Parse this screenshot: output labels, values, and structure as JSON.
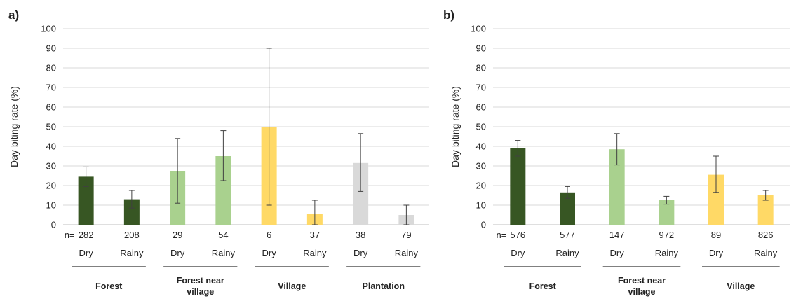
{
  "chart_data": [
    {
      "type": "bar",
      "panel": "a)",
      "ylabel": "Day biting rate (%)",
      "ylim": [
        0,
        100
      ],
      "yticks": [
        0,
        10,
        20,
        30,
        40,
        50,
        60,
        70,
        80,
        90,
        100
      ],
      "grid": true,
      "n_prefix": "n=",
      "bars": [
        {
          "group": "Forest",
          "season": "Dry",
          "n": "282",
          "value": 24.5,
          "err_low": 19.5,
          "err_high": 29.5,
          "color": "#375623"
        },
        {
          "group": "Forest",
          "season": "Rainy",
          "n": "208",
          "value": 13.0,
          "err_low": 8.5,
          "err_high": 17.5,
          "color": "#375623"
        },
        {
          "group": "Forest near village",
          "season": "Dry",
          "n": "29",
          "value": 27.5,
          "err_low": 11.0,
          "err_high": 44.0,
          "color": "#a9d18e"
        },
        {
          "group": "Forest near village",
          "season": "Rainy",
          "n": "54",
          "value": 35.0,
          "err_low": 22.5,
          "err_high": 48.0,
          "color": "#a9d18e"
        },
        {
          "group": "Village",
          "season": "Dry",
          "n": "6",
          "value": 50.0,
          "err_low": 10.0,
          "err_high": 90.0,
          "color": "#ffd966"
        },
        {
          "group": "Village",
          "season": "Rainy",
          "n": "37",
          "value": 5.5,
          "err_low": 0.0,
          "err_high": 12.5,
          "color": "#ffd966"
        },
        {
          "group": "Plantation",
          "season": "Dry",
          "n": "38",
          "value": 31.5,
          "err_low": 17.0,
          "err_high": 46.5,
          "color": "#d9d9d9"
        },
        {
          "group": "Plantation",
          "season": "Rainy",
          "n": "79",
          "value": 5.0,
          "err_low": 0.0,
          "err_high": 10.0,
          "color": "#d9d9d9"
        }
      ],
      "groups": [
        "Forest",
        "Forest near village",
        "Village",
        "Plantation"
      ]
    },
    {
      "type": "bar",
      "panel": "b)",
      "ylabel": "Day biting rate (%)",
      "ylim": [
        0,
        100
      ],
      "yticks": [
        0,
        10,
        20,
        30,
        40,
        50,
        60,
        70,
        80,
        90,
        100
      ],
      "grid": true,
      "n_prefix": "n=",
      "bars": [
        {
          "group": "Forest",
          "season": "Dry",
          "n": "576",
          "value": 39.0,
          "err_low": 35.0,
          "err_high": 43.0,
          "color": "#375623"
        },
        {
          "group": "Forest",
          "season": "Rainy",
          "n": "577",
          "value": 16.5,
          "err_low": 13.5,
          "err_high": 19.5,
          "color": "#375623"
        },
        {
          "group": "Forest near village",
          "season": "Dry",
          "n": "147",
          "value": 38.5,
          "err_low": 30.5,
          "err_high": 46.5,
          "color": "#a9d18e"
        },
        {
          "group": "Forest near village",
          "season": "Rainy",
          "n": "972",
          "value": 12.5,
          "err_low": 10.5,
          "err_high": 14.5,
          "color": "#a9d18e"
        },
        {
          "group": "Village",
          "season": "Dry",
          "n": "89",
          "value": 25.5,
          "err_low": 16.5,
          "err_high": 35.0,
          "color": "#ffd966"
        },
        {
          "group": "Village",
          "season": "Rainy",
          "n": "826",
          "value": 15.0,
          "err_low": 12.5,
          "err_high": 17.5,
          "color": "#ffd966"
        }
      ],
      "groups": [
        "Forest",
        "Forest near village",
        "Village"
      ]
    }
  ]
}
